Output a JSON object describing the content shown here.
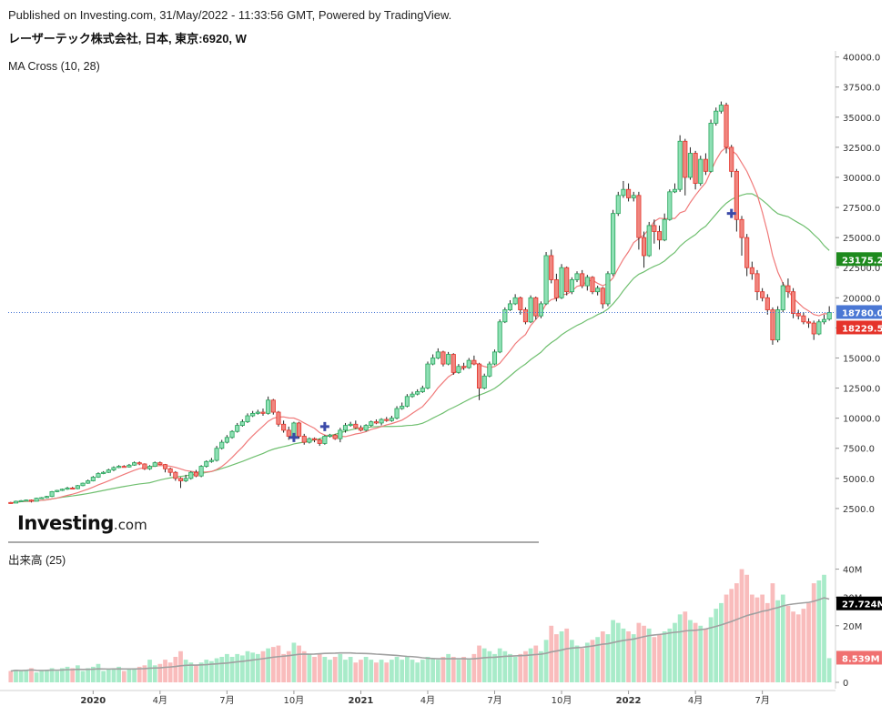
{
  "header": {
    "published": "Published on Investing.com, 31/May/2022 - 11:33:56 GMT, Powered by TradingView.",
    "symbol": "レーザーテック株式会社, 日本, 東京:6920, W"
  },
  "brand": {
    "main": "Investing",
    "suffix": ".com"
  },
  "price_panel": {
    "indicator_label": "MA Cross (10, 28)",
    "y_ticks": [
      "40000.0",
      "37500.0",
      "35000.0",
      "32500.0",
      "30000.0",
      "27500.0",
      "25000.0",
      "22500.0",
      "20000.0",
      "17500.0",
      "15000.0",
      "12500.0",
      "10000.0",
      "7500.0",
      "5000.0",
      "2500.0"
    ],
    "badges": [
      {
        "label": "23175.2",
        "value": 23175.2,
        "color": "#1e8a1e"
      },
      {
        "label": "18780.0",
        "value": 18780.0,
        "color": "#4a77d4"
      },
      {
        "label": "18229.5",
        "value": 18229.5,
        "color": "#e5332a"
      }
    ]
  },
  "volume_panel": {
    "label": "出来高 (25)",
    "y_ticks": [
      "40M",
      "30M",
      "20M",
      "0"
    ],
    "badges": [
      {
        "label": "27.724M",
        "value": 27.724,
        "color": "#000000"
      },
      {
        "label": "8.539M",
        "value": 8.539,
        "color": "#f07070"
      }
    ]
  },
  "x_axis": {
    "ticks": [
      "2020",
      "4月",
      "7月",
      "10月",
      "2021",
      "4月",
      "7月",
      "10月",
      "2022",
      "4月",
      "7月"
    ]
  },
  "chart_data": {
    "type": "candlestick",
    "title": "レーザーテック株式会社, 日本, 東京:6920, W",
    "x_ticks": [
      "2020",
      "4月",
      "7月",
      "10月",
      "2021",
      "4月",
      "7月",
      "10月",
      "2022",
      "4月",
      "7月"
    ],
    "price_ylim": [
      0,
      40500
    ],
    "volume_ylim_millions": [
      0,
      45
    ],
    "colors": {
      "up": "#26a65b",
      "up_fill": "#8fe0b5",
      "down": "#e5332a",
      "down_fill": "#f0867f",
      "vol_up": "#a8ebc9",
      "vol_down": "#f9bcbc",
      "ma_fast": "#f07a7a",
      "ma_slow": "#6fbf6f",
      "vol_ma": "#a0a0a0"
    },
    "candles": [
      [
        3000,
        2950,
        3050,
        2900,
        4.0
      ],
      [
        2950,
        3100,
        3150,
        2950,
        4.5
      ],
      [
        3100,
        3150,
        3200,
        3050,
        4.0
      ],
      [
        3150,
        3200,
        3250,
        3100,
        4.5
      ],
      [
        3200,
        3100,
        3250,
        3000,
        5.0
      ],
      [
        3100,
        3350,
        3400,
        3100,
        3.5
      ],
      [
        3350,
        3400,
        3450,
        3300,
        4.0
      ],
      [
        3400,
        3500,
        3550,
        3350,
        4.5
      ],
      [
        3500,
        3900,
        3950,
        3450,
        5.0
      ],
      [
        3900,
        4000,
        4050,
        3850,
        4.0
      ],
      [
        4000,
        4100,
        4150,
        3950,
        5.0
      ],
      [
        4100,
        4200,
        4300,
        4050,
        5.5
      ],
      [
        4200,
        4150,
        4300,
        4100,
        5.0
      ],
      [
        4150,
        4400,
        4450,
        4100,
        6.0
      ],
      [
        4400,
        4600,
        4650,
        4350,
        4.0
      ],
      [
        4600,
        4800,
        4900,
        4550,
        5.0
      ],
      [
        4800,
        5100,
        5200,
        4750,
        5.5
      ],
      [
        5100,
        5400,
        5500,
        5050,
        6.5
      ],
      [
        5400,
        5500,
        5600,
        5350,
        4.0
      ],
      [
        5500,
        5700,
        5800,
        5450,
        4.5
      ],
      [
        5700,
        5900,
        6000,
        5600,
        5.0
      ],
      [
        5900,
        6000,
        6100,
        5850,
        5.5
      ],
      [
        6000,
        5950,
        6100,
        5900,
        4.0
      ],
      [
        5950,
        6100,
        6200,
        5900,
        4.5
      ],
      [
        6100,
        6300,
        6400,
        6050,
        5.0
      ],
      [
        6300,
        6200,
        6400,
        6100,
        5.5
      ],
      [
        6200,
        5800,
        6250,
        5700,
        6.0
      ],
      [
        5800,
        6000,
        6100,
        5700,
        8.0
      ],
      [
        6000,
        6300,
        6400,
        5950,
        6.0
      ],
      [
        6300,
        6150,
        6400,
        6100,
        6.5
      ],
      [
        6150,
        5800,
        6200,
        5500,
        8.0
      ],
      [
        5800,
        5500,
        5900,
        5200,
        7.0
      ],
      [
        5500,
        5000,
        5600,
        4800,
        9.0
      ],
      [
        5000,
        4800,
        5100,
        4200,
        11.0
      ],
      [
        4800,
        5000,
        5300,
        4700,
        8.0
      ],
      [
        5000,
        5500,
        5600,
        4900,
        7.0
      ],
      [
        5500,
        5200,
        5700,
        5100,
        6.0
      ],
      [
        5200,
        6000,
        6100,
        5100,
        7.0
      ],
      [
        6000,
        6400,
        6500,
        5900,
        8.0
      ],
      [
        6400,
        6500,
        6700,
        6300,
        7.5
      ],
      [
        6500,
        7500,
        7700,
        6400,
        8.5
      ],
      [
        7500,
        8000,
        8200,
        7400,
        9.0
      ],
      [
        8000,
        8400,
        8600,
        7900,
        10.0
      ],
      [
        8400,
        8900,
        9000,
        8300,
        9.0
      ],
      [
        8900,
        9400,
        9600,
        8800,
        10.0
      ],
      [
        9400,
        9700,
        9900,
        9300,
        9.5
      ],
      [
        9700,
        10200,
        10400,
        9600,
        11.0
      ],
      [
        10200,
        10400,
        10600,
        10100,
        10.5
      ],
      [
        10400,
        10500,
        10700,
        10300,
        10.0
      ],
      [
        10500,
        10400,
        10800,
        10200,
        11.0
      ],
      [
        10400,
        11500,
        11800,
        10300,
        12.0
      ],
      [
        11500,
        10500,
        11600,
        10300,
        12.5
      ],
      [
        10500,
        9500,
        10600,
        9300,
        13.0
      ],
      [
        9500,
        9000,
        9800,
        8800,
        10.0
      ],
      [
        9000,
        8500,
        9300,
        8200,
        11.0
      ],
      [
        8500,
        9600,
        9700,
        8400,
        14.0
      ],
      [
        9600,
        8500,
        9700,
        8300,
        13.0
      ],
      [
        8500,
        8000,
        8700,
        7800,
        11.0
      ],
      [
        8000,
        8300,
        8400,
        7900,
        10.0
      ],
      [
        8300,
        8200,
        8400,
        8000,
        9.0
      ],
      [
        8200,
        7900,
        8300,
        7700,
        10.0
      ],
      [
        7900,
        8500,
        8600,
        7800,
        9.0
      ],
      [
        8500,
        8600,
        8700,
        8400,
        8.0
      ],
      [
        8600,
        8300,
        8700,
        8200,
        9.0
      ],
      [
        8300,
        9000,
        9200,
        8000,
        10.0
      ],
      [
        9000,
        9400,
        9600,
        8800,
        8.0
      ],
      [
        9400,
        9500,
        9700,
        9300,
        9.0
      ],
      [
        9500,
        9200,
        9800,
        9100,
        7.0
      ],
      [
        9200,
        9000,
        9400,
        8900,
        8.0
      ],
      [
        9000,
        9400,
        9500,
        8900,
        9.0
      ],
      [
        9400,
        9700,
        9800,
        9300,
        8.0
      ],
      [
        9700,
        9600,
        9900,
        9500,
        7.0
      ],
      [
        9600,
        9900,
        10000,
        9400,
        8.0
      ],
      [
        9900,
        9800,
        10100,
        9700,
        7.0
      ],
      [
        9800,
        10000,
        10200,
        9700,
        8.0
      ],
      [
        10000,
        10800,
        11000,
        9900,
        9.0
      ],
      [
        10800,
        11000,
        11300,
        10700,
        8.0
      ],
      [
        11000,
        11800,
        12000,
        10900,
        9.0
      ],
      [
        11800,
        12000,
        12200,
        11700,
        8.0
      ],
      [
        12000,
        12200,
        12400,
        11900,
        7.0
      ],
      [
        12200,
        12500,
        12700,
        12100,
        8.0
      ],
      [
        12500,
        14500,
        14700,
        12400,
        9.0
      ],
      [
        14500,
        15000,
        15300,
        14400,
        8.5
      ],
      [
        15000,
        15500,
        15800,
        14900,
        8.0
      ],
      [
        15500,
        14500,
        15600,
        14300,
        9.0
      ],
      [
        14500,
        15300,
        15500,
        14400,
        10.0
      ],
      [
        15300,
        13800,
        15400,
        13600,
        9.0
      ],
      [
        13800,
        14300,
        14500,
        13700,
        8.0
      ],
      [
        14300,
        14200,
        14600,
        14000,
        9.0
      ],
      [
        14200,
        14800,
        15000,
        14100,
        8.0
      ],
      [
        14800,
        14500,
        15200,
        14400,
        10.0
      ],
      [
        14500,
        12500,
        14600,
        11500,
        13.0
      ],
      [
        12500,
        13500,
        13700,
        12400,
        12.0
      ],
      [
        13500,
        14500,
        14700,
        13400,
        11.0
      ],
      [
        14500,
        15500,
        15700,
        14400,
        10.0
      ],
      [
        15500,
        18000,
        18200,
        15400,
        12.0
      ],
      [
        18000,
        19000,
        19200,
        17900,
        11.0
      ],
      [
        19000,
        19500,
        19800,
        18900,
        10.0
      ],
      [
        19500,
        20000,
        20300,
        19400,
        9.0
      ],
      [
        20000,
        19000,
        20100,
        18600,
        10.0
      ],
      [
        19000,
        18000,
        19200,
        17800,
        11.0
      ],
      [
        18000,
        20000,
        20200,
        17900,
        12.0
      ],
      [
        20000,
        18500,
        20100,
        18200,
        13.0
      ],
      [
        18500,
        19500,
        19700,
        18300,
        11.0
      ],
      [
        19500,
        23500,
        23800,
        19400,
        15.0
      ],
      [
        23500,
        21500,
        24000,
        21200,
        20.0
      ],
      [
        21500,
        20000,
        22000,
        19700,
        17.0
      ],
      [
        20000,
        22500,
        22800,
        19900,
        18.0
      ],
      [
        22500,
        20500,
        22600,
        20200,
        19.0
      ],
      [
        20500,
        21500,
        21700,
        20300,
        15.0
      ],
      [
        21500,
        22000,
        22200,
        21300,
        13.0
      ],
      [
        22000,
        21000,
        22300,
        20800,
        12.0
      ],
      [
        21000,
        21700,
        21900,
        20600,
        14.0
      ],
      [
        21700,
        20500,
        21800,
        20300,
        15.0
      ],
      [
        20500,
        20800,
        21000,
        20200,
        16.0
      ],
      [
        20800,
        19500,
        20900,
        19100,
        18.0
      ],
      [
        19500,
        22000,
        22200,
        19300,
        17.0
      ],
      [
        22000,
        27000,
        27300,
        21800,
        22.0
      ],
      [
        27000,
        28500,
        28800,
        26800,
        21.0
      ],
      [
        28500,
        29000,
        29700,
        28300,
        19.0
      ],
      [
        29000,
        28300,
        29500,
        28000,
        18.0
      ],
      [
        28300,
        28500,
        28800,
        28000,
        17.0
      ],
      [
        28500,
        25000,
        28800,
        24000,
        21.0
      ],
      [
        25000,
        23500,
        25500,
        22500,
        20.0
      ],
      [
        23500,
        26000,
        26300,
        23400,
        19.0
      ],
      [
        26000,
        25500,
        26500,
        24500,
        16.0
      ],
      [
        25500,
        24800,
        26000,
        24000,
        17.0
      ],
      [
        24800,
        26500,
        27000,
        24700,
        18.0
      ],
      [
        26500,
        28800,
        29000,
        26400,
        19.0
      ],
      [
        28800,
        29000,
        29500,
        28700,
        21.0
      ],
      [
        29000,
        33000,
        33500,
        28800,
        24.0
      ],
      [
        33000,
        30000,
        33200,
        28500,
        25.0
      ],
      [
        30000,
        32000,
        32500,
        29800,
        22.0
      ],
      [
        32000,
        29500,
        32200,
        29000,
        21.0
      ],
      [
        29500,
        31500,
        31800,
        29300,
        20.0
      ],
      [
        31500,
        30500,
        32000,
        30200,
        19.0
      ],
      [
        30500,
        34500,
        34800,
        30400,
        23.0
      ],
      [
        34500,
        35500,
        35800,
        34300,
        26.0
      ],
      [
        35500,
        36000,
        36300,
        35300,
        28.0
      ],
      [
        36000,
        32500,
        36200,
        32000,
        31.0
      ],
      [
        32500,
        30500,
        32700,
        30000,
        33.0
      ],
      [
        30500,
        26500,
        30700,
        25500,
        35.0
      ],
      [
        26500,
        25000,
        26800,
        23500,
        40.0
      ],
      [
        25000,
        22500,
        25300,
        21800,
        38.0
      ],
      [
        22500,
        22000,
        23000,
        21500,
        31.0
      ],
      [
        22000,
        20500,
        22300,
        19800,
        30.0
      ],
      [
        20500,
        20000,
        20800,
        19700,
        31.0
      ],
      [
        20000,
        19000,
        20300,
        18600,
        28.0
      ],
      [
        19000,
        16500,
        19200,
        16100,
        35.0
      ],
      [
        16500,
        19000,
        19300,
        16300,
        29.0
      ],
      [
        19000,
        21000,
        21300,
        18800,
        31.0
      ],
      [
        21000,
        20500,
        21600,
        20000,
        27.0
      ],
      [
        20500,
        18700,
        20800,
        18300,
        25.0
      ],
      [
        18700,
        18500,
        19000,
        18200,
        24.0
      ],
      [
        18500,
        18000,
        18800,
        17800,
        26.0
      ],
      [
        18000,
        17900,
        18300,
        17500,
        28.0
      ],
      [
        17900,
        17000,
        18100,
        16500,
        35.0
      ],
      [
        17000,
        18000,
        18200,
        16900,
        36.0
      ],
      [
        18000,
        18200,
        18600,
        17800,
        38.0
      ],
      [
        18229.5,
        18780,
        19300,
        18100,
        8.539
      ]
    ],
    "ma_fast_label": "MA 10",
    "ma_slow_label": "MA 28",
    "volume_ma_period": 25,
    "cross_markers": [
      {
        "index": 55,
        "value": 8400
      },
      {
        "index": 61,
        "value": 9300
      },
      {
        "index": 140,
        "value": 27000
      }
    ]
  }
}
